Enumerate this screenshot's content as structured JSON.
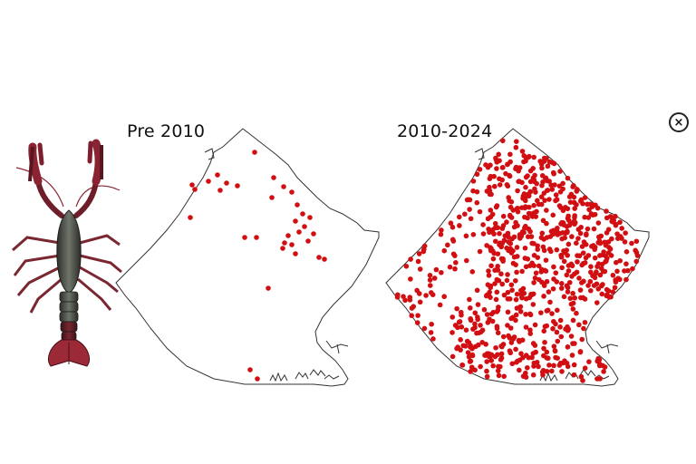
{
  "panels": [
    {
      "id": "pre",
      "title": "Pre 2010",
      "point_color": "#d10f12"
    },
    {
      "id": "post",
      "title": "2010-2024",
      "point_color": "#d10f12"
    }
  ],
  "close": {
    "label": "×",
    "icon": "close-icon"
  },
  "image": {
    "subject": "crayfish-icon"
  }
}
